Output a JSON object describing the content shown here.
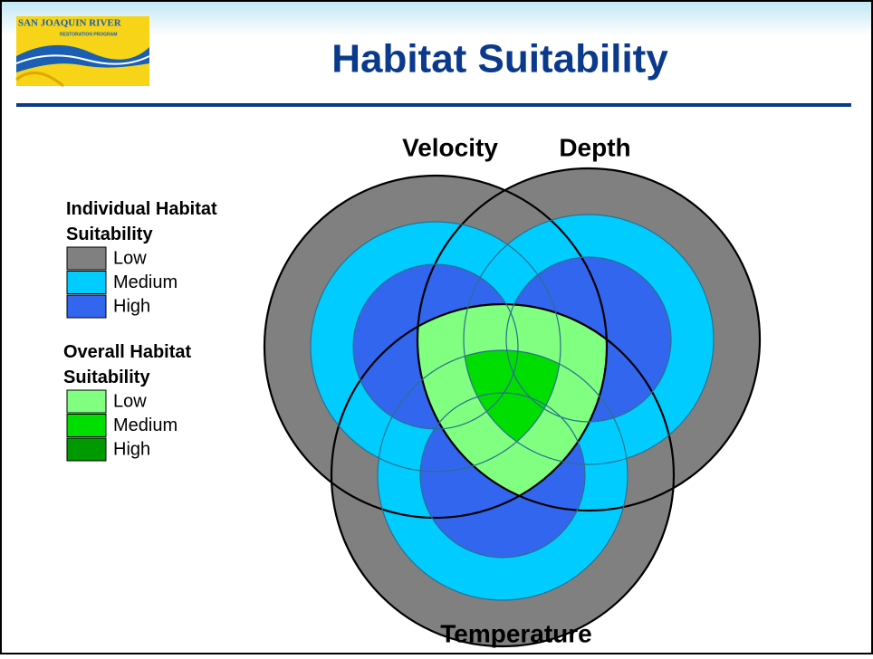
{
  "header": {
    "title": "Habitat Suitability",
    "logo": {
      "line1": "SAN JOAQUIN RIVER",
      "line2": "RESTORATION PROGRAM"
    }
  },
  "legend": {
    "individual": {
      "title": "Individual Habitat Suitability",
      "items": [
        {
          "label": "Low",
          "color": "#808080"
        },
        {
          "label": "Medium",
          "color": "#00ccff"
        },
        {
          "label": "High",
          "color": "#3366ee"
        }
      ]
    },
    "overall": {
      "title": "Overall Habitat Suitability",
      "items": [
        {
          "label": "Low",
          "color": "#80ff80"
        },
        {
          "label": "Medium",
          "color": "#00dd00"
        },
        {
          "label": "High",
          "color": "#009900"
        }
      ]
    }
  },
  "diagram": {
    "labels": [
      "Velocity",
      "Depth",
      "Temperature"
    ]
  }
}
